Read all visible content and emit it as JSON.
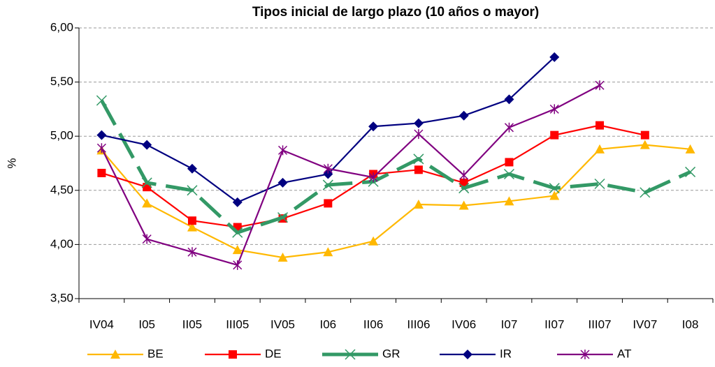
{
  "chart_data": {
    "type": "line",
    "title": "Tipos inicial de largo plazo (10 años o mayor)",
    "y_label": "%",
    "categories": [
      "IV04",
      "I05",
      "II05",
      "III05",
      "IV05",
      "I06",
      "II06",
      "III06",
      "IV06",
      "I07",
      "II07",
      "III07",
      "IV07",
      "I08"
    ],
    "series": [
      {
        "name": "BE",
        "color": "#ffb800",
        "marker": "triangle",
        "values": [
          4.87,
          4.38,
          4.16,
          3.95,
          3.88,
          3.93,
          4.03,
          4.37,
          4.36,
          4.4,
          4.45,
          4.88,
          4.92,
          4.88
        ]
      },
      {
        "name": "DE",
        "color": "#ff0000",
        "marker": "square",
        "values": [
          4.66,
          4.53,
          4.22,
          4.16,
          4.24,
          4.38,
          4.65,
          4.69,
          4.57,
          4.76,
          5.01,
          5.1,
          5.01,
          null
        ]
      },
      {
        "name": "GR",
        "color": "#339966",
        "marker": "x",
        "values": [
          5.33,
          4.57,
          4.5,
          4.11,
          4.25,
          4.55,
          4.58,
          4.79,
          4.52,
          4.65,
          4.52,
          4.56,
          4.48,
          4.67
        ]
      },
      {
        "name": "IR",
        "color": "#000080",
        "marker": "diamond",
        "values": [
          5.01,
          4.92,
          4.7,
          4.39,
          4.57,
          4.65,
          5.09,
          5.12,
          5.19,
          5.34,
          5.73,
          null,
          null,
          null
        ]
      },
      {
        "name": "AT",
        "color": "#800080",
        "marker": "star",
        "values": [
          4.89,
          4.05,
          3.93,
          3.81,
          4.87,
          4.7,
          4.62,
          5.02,
          4.64,
          5.08,
          5.25,
          5.47,
          null,
          null
        ]
      }
    ],
    "ylim": [
      3.5,
      6.0
    ],
    "yticks": [
      {
        "value": 3.5,
        "label": "3,50"
      },
      {
        "value": 4.0,
        "label": "4,00"
      },
      {
        "value": 4.5,
        "label": "4,50"
      },
      {
        "value": 5.0,
        "label": "5,00"
      },
      {
        "value": 5.5,
        "label": "5,50"
      },
      {
        "value": 6.0,
        "label": "6,00"
      }
    ],
    "grid": true,
    "legend": "bottom"
  }
}
